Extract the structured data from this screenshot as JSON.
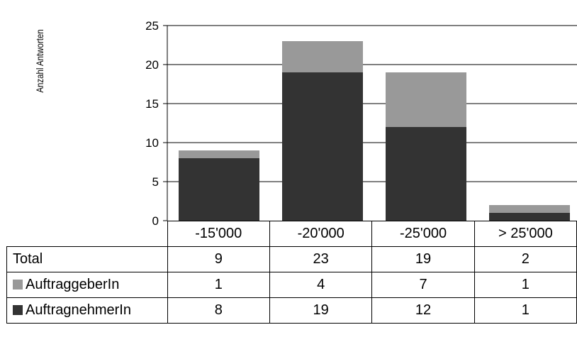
{
  "chart_data": {
    "type": "bar",
    "stacked": true,
    "categories": [
      "-15'000",
      "-20'000",
      "-25'000",
      "> 25'000"
    ],
    "series": [
      {
        "name": "AuftragnehmerIn",
        "values": [
          8,
          19,
          12,
          1
        ],
        "color": "#333333"
      },
      {
        "name": "AuftraggeberIn",
        "values": [
          1,
          4,
          7,
          1
        ],
        "color": "#999999"
      }
    ],
    "totals_label": "Total",
    "totals": [
      9,
      23,
      19,
      2
    ],
    "ylabel": "Anzahl Antworten",
    "ylim": [
      0,
      25
    ],
    "yticks": [
      0,
      5,
      10,
      15,
      20,
      25
    ],
    "grid": true,
    "legend": "data-table"
  }
}
